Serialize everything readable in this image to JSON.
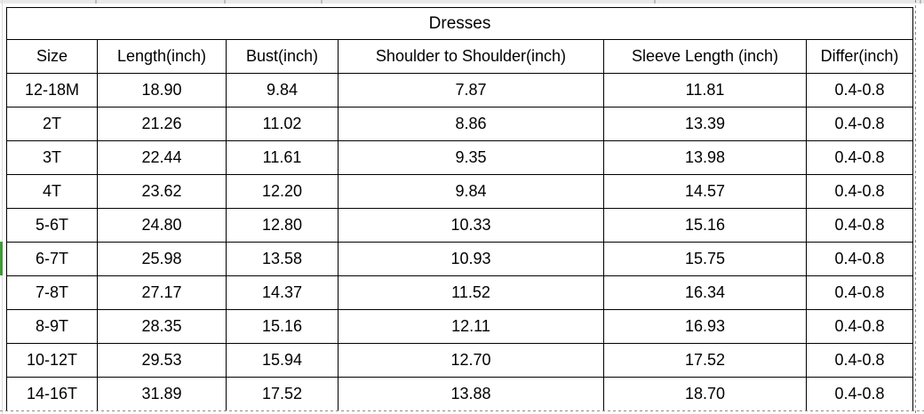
{
  "app": {
    "kind": "spreadsheet-size-chart"
  },
  "colors": {
    "border": "#000000",
    "text": "#000000",
    "grid_light": "#dcdcdc",
    "top_strip_bg": "#e9e9e9",
    "top_strip_tick": "#bcbcbc",
    "page_break_dash": "#8a8a8a",
    "selection_green": "#3e9b35"
  },
  "table": {
    "title": "Dresses",
    "columns": [
      "Size",
      "Length(inch)",
      "Bust(inch)",
      "Shoulder to Shoulder(inch)",
      "Sleeve Length (inch)",
      "Differ(inch)"
    ],
    "rows": [
      {
        "cells": [
          "12-18M",
          "18.90",
          "9.84",
          "7.87",
          "11.81",
          "0.4-0.8"
        ]
      },
      {
        "cells": [
          "2T",
          "21.26",
          "11.02",
          "8.86",
          "13.39",
          "0.4-0.8"
        ]
      },
      {
        "cells": [
          "3T",
          "22.44",
          "11.61",
          "9.35",
          "13.98",
          "0.4-0.8"
        ]
      },
      {
        "cells": [
          "4T",
          "23.62",
          "12.20",
          "9.84",
          "14.57",
          "0.4-0.8"
        ]
      },
      {
        "cells": [
          "5-6T",
          "24.80",
          "12.80",
          "10.33",
          "15.16",
          "0.4-0.8"
        ]
      },
      {
        "cells": [
          "6-7T",
          "25.98",
          "13.58",
          "10.93",
          "15.75",
          "0.4-0.8"
        ]
      },
      {
        "cells": [
          "7-8T",
          "27.17",
          "14.37",
          "11.52",
          "16.34",
          "0.4-0.8"
        ]
      },
      {
        "cells": [
          "8-9T",
          "28.35",
          "15.16",
          "12.11",
          "16.93",
          "0.4-0.8"
        ]
      },
      {
        "cells": [
          "10-12T",
          "29.53",
          "15.94",
          "12.70",
          "17.52",
          "0.4-0.8"
        ]
      },
      {
        "cells": [
          "14-16T",
          "31.89",
          "17.52",
          "13.88",
          "18.70",
          "0.4-0.8"
        ]
      }
    ],
    "selection": {
      "selected_row_size": "6-7T",
      "selected_row_index": 5
    }
  }
}
